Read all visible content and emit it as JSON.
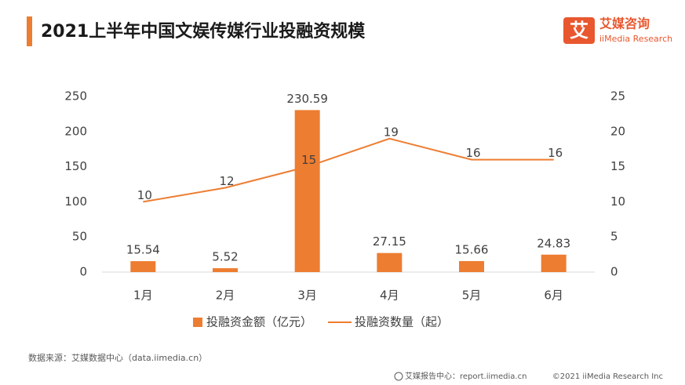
{
  "header": {
    "logo_mark": "艾",
    "logo_name": "艾媒咨询",
    "logo_sub": "iiMedia Research"
  },
  "chart_data": {
    "type": "bar",
    "title": "2021上半年中国文娱传媒行业投融资规模",
    "categories": [
      "1月",
      "2月",
      "3月",
      "4月",
      "5月",
      "6月"
    ],
    "series": [
      {
        "name": "投融资金额（亿元）",
        "type": "bar",
        "color": "#ed7d31",
        "values": [
          15.54,
          5.52,
          230.59,
          27.15,
          15.66,
          24.83
        ]
      },
      {
        "name": "投融资数量（起）",
        "type": "line",
        "axis": "y2",
        "color": "#ed7d31",
        "values": [
          10,
          12,
          15,
          19,
          16,
          16
        ]
      }
    ],
    "ylim": [
      0,
      250
    ],
    "yticks": [
      0,
      50,
      100,
      150,
      200,
      250
    ],
    "y2lim": [
      0,
      25
    ],
    "y2ticks": [
      0,
      5,
      10,
      15,
      20,
      25
    ],
    "grid": false,
    "legend": "bottom"
  },
  "footer": {
    "source": "数据来源：艾媒数据中心（data.iimedia.cn）",
    "report": "艾媒报告中心：report.iimedia.cn",
    "copyright": "©2021  iiMedia Research  Inc"
  }
}
